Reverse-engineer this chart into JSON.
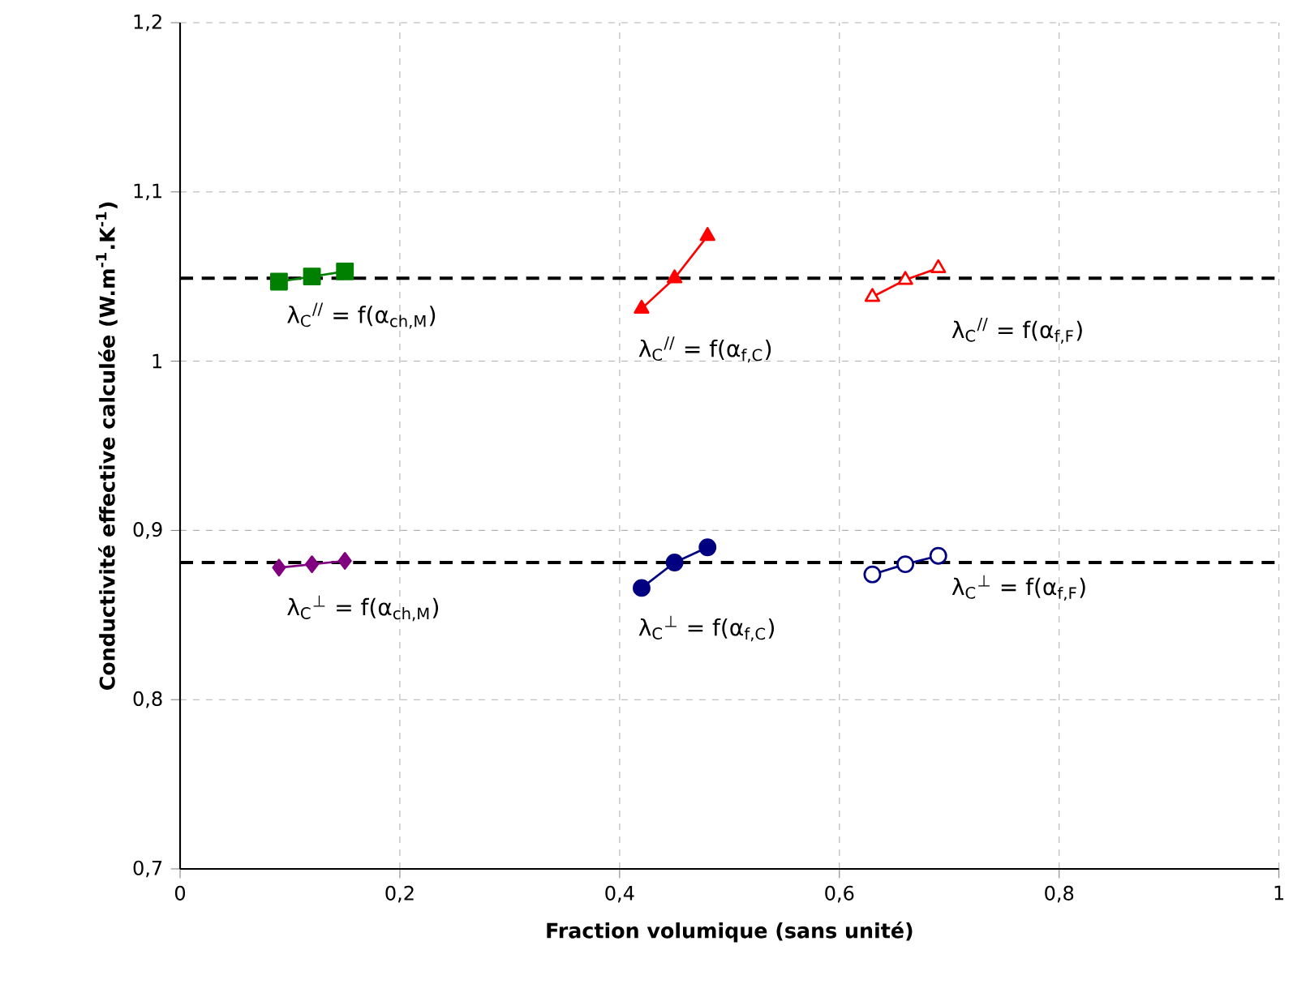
{
  "chart_data": {
    "type": "line",
    "xlabel": "Fraction volumique (sans unité)",
    "ylabel": "Conductivité effective calculée (W.m$^{-1}$.K$^{-1}$)",
    "xlim": [
      0,
      1
    ],
    "ylim": [
      0.7,
      1.2
    ],
    "xticks": [
      0,
      {
        "value": 0.2,
        "label": "0,2"
      },
      {
        "value": 0.4,
        "label": "0,4"
      },
      {
        "value": 0.6,
        "label": "0,6"
      },
      {
        "value": 0.8,
        "label": "0,8"
      },
      1
    ],
    "yticks": [
      {
        "value": 0.7,
        "label": "0,7"
      },
      {
        "value": 0.8,
        "label": "0,8"
      },
      {
        "value": 0.9,
        "label": "0,9"
      },
      1,
      {
        "value": 1.1,
        "label": "1,1"
      },
      {
        "value": 1.2,
        "label": "1,2"
      }
    ],
    "grid": true,
    "series": [
      {
        "name": "λ$_{C}$$^{//}$ = f(α$_{ch,M}$)",
        "color": "#008000",
        "marker": "square",
        "x": [
          0.09,
          0.12,
          0.15
        ],
        "values": [
          1.047,
          1.05,
          1.053
        ]
      },
      {
        "name": "λ$_{C}$$^{//}$ = f(α$_{f,C}$)",
        "color": "#ff0000",
        "marker": "triangle",
        "x": [
          0.42,
          0.45,
          0.48
        ],
        "values": [
          1.031,
          1.049,
          1.074
        ]
      },
      {
        "name": "λ$_{C}$$^{//}$ = f(α$_{f,F}$)",
        "color": "#ff0000",
        "marker": "triangle-open",
        "x": [
          0.63,
          0.66,
          0.69
        ],
        "values": [
          1.038,
          1.048,
          1.055
        ]
      },
      {
        "name": "λ$_{C}$$^{⊥}$ = f(α$_{ch,M}$)",
        "color": "#800080",
        "marker": "diamond",
        "x": [
          0.09,
          0.12,
          0.15
        ],
        "values": [
          0.878,
          0.88,
          0.882
        ]
      },
      {
        "name": "λ$_{C}$$^{⊥}$ = f(α$_{f,C}$)",
        "color": "#000080",
        "marker": "circle",
        "x": [
          0.42,
          0.45,
          0.48
        ],
        "values": [
          0.866,
          0.881,
          0.89
        ]
      },
      {
        "name": "λ$_{C}$$^{⊥}$ = f(α$_{f,F}$)",
        "color": "#000080",
        "marker": "circle-open",
        "x": [
          0.63,
          0.66,
          0.69
        ],
        "values": [
          0.874,
          0.88,
          0.885
        ]
      }
    ],
    "ref_lines": [
      {
        "axis": "y",
        "value": 1.049,
        "color": "#000000",
        "line_style": "dashed"
      },
      {
        "axis": "y",
        "value": 0.881,
        "color": "#000000",
        "line_style": "dashed"
      }
    ]
  }
}
